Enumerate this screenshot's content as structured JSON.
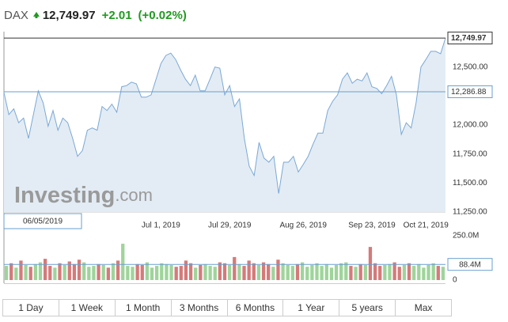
{
  "header": {
    "symbol": "DAX",
    "price": "12,749.97",
    "change": "+2.01",
    "change_pct": "(+0.02%)"
  },
  "watermark": {
    "brand": "Investing",
    "suffix": ".com"
  },
  "crosshair_label": "06/05/2019",
  "range_buttons": [
    "1 Day",
    "1 Week",
    "1 Month",
    "3 Months",
    "6 Months",
    "1 Year",
    "5 years",
    "Max"
  ],
  "chart_data": [
    {
      "type": "line",
      "color": "#7aa8d6",
      "fill": "#e3ecf4",
      "categories": [
        null,
        null,
        null,
        null,
        null,
        null,
        null,
        null,
        null,
        null,
        null,
        null,
        null,
        null,
        null,
        null,
        null,
        null,
        null,
        null,
        null,
        null,
        null,
        null,
        null,
        null,
        null,
        null,
        null,
        null,
        null,
        null,
        "Jul 1, 2019",
        null,
        null,
        null,
        null,
        null,
        null,
        null,
        null,
        null,
        null,
        null,
        null,
        null,
        "Jul 29, 2019",
        null,
        null,
        null,
        null,
        null,
        null,
        null,
        null,
        null,
        null,
        null,
        null,
        null,
        null,
        "Aug 26, 2019",
        null,
        null,
        null,
        null,
        null,
        null,
        null,
        null,
        null,
        null,
        null,
        null,
        null,
        "Sep 23, 2019",
        null,
        null,
        null,
        null,
        null,
        null,
        null,
        null,
        null,
        null,
        "Oct 21, 2019",
        null,
        null,
        null,
        null
      ],
      "values": [
        12280,
        12090,
        12140,
        12020,
        12060,
        11885,
        12090,
        12295,
        12190,
        11990,
        12125,
        11955,
        12060,
        12020,
        11885,
        11730,
        11780,
        11955,
        11975,
        11955,
        12160,
        12125,
        12180,
        12110,
        12330,
        12340,
        12370,
        12355,
        12240,
        12240,
        12260,
        12395,
        12530,
        12600,
        12620,
        12565,
        12475,
        12395,
        12340,
        12430,
        12295,
        12295,
        12395,
        12500,
        12490,
        12260,
        12340,
        12160,
        12225,
        11885,
        11645,
        11565,
        11850,
        11715,
        11680,
        11730,
        11410,
        11680,
        11680,
        11730,
        11595,
        11660,
        11730,
        11835,
        11930,
        11930,
        12125,
        12205,
        12260,
        12395,
        12450,
        12360,
        12395,
        12380,
        12450,
        12330,
        12315,
        12270,
        12340,
        12420,
        12260,
        11920,
        12020,
        11975,
        12190,
        12500,
        12565,
        12635,
        12635,
        12615,
        12749.97
      ],
      "ylim": [
        11250,
        12805
      ],
      "yticks": [
        {
          "value": 12500,
          "label": "12,500.00"
        },
        {
          "value": 12000,
          "label": "12,000.00"
        },
        {
          "value": 11750,
          "label": "11,750.00"
        },
        {
          "value": 11500,
          "label": "11,500.00"
        },
        {
          "value": 11250,
          "label": "11,250.00"
        }
      ],
      "grid": false,
      "last_line": {
        "value": 12749.97,
        "label": "12,749.97",
        "color": "#333333"
      },
      "reference_line": {
        "value": 12286.88,
        "label": "12,286.88",
        "color": "#6a9fcf"
      }
    },
    {
      "type": "bar",
      "up_color": "#9fd49b",
      "down_color": "#d57a7a",
      "values": [
        80,
        95,
        70,
        110,
        85,
        75,
        90,
        100,
        120,
        80,
        70,
        95,
        85,
        105,
        90,
        115,
        100,
        75,
        80,
        90,
        85,
        70,
        95,
        110,
        205,
        80,
        75,
        90,
        85,
        100,
        70,
        80,
        95,
        90,
        85,
        75,
        80,
        110,
        95,
        70,
        85,
        90,
        80,
        75,
        100,
        95,
        85,
        130,
        90,
        80,
        110,
        95,
        85,
        100,
        90,
        75,
        115,
        95,
        85,
        80,
        90,
        100,
        75,
        85,
        95,
        80,
        90,
        70,
        85,
        95,
        100,
        80,
        75,
        90,
        85,
        187,
        95,
        80,
        85,
        90,
        100,
        75,
        85,
        95,
        80,
        90,
        70,
        85,
        95,
        80,
        75
      ],
      "ylim": [
        0,
        250
      ],
      "yticks": [
        {
          "value": 250,
          "label": "250.0M"
        },
        0
      ],
      "reference_line": {
        "value": 88.4,
        "label": "88.4M",
        "color": "#6a9fcf"
      }
    }
  ]
}
